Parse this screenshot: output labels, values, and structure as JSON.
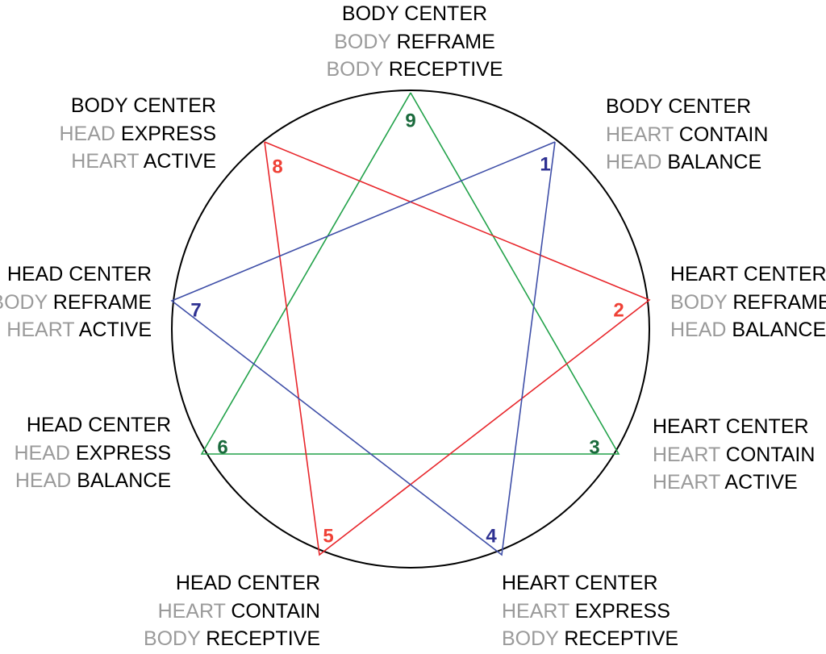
{
  "colors": {
    "circle": "#000000",
    "green": "#22a24a",
    "red": "#e8262b",
    "blue": "#3f4fa8",
    "green_label": "#1a6a3c",
    "red_label": "#ef4136",
    "blue_label": "#2e3192",
    "gray_text": "#9a9a9a"
  },
  "lines": [
    {
      "color": "green",
      "path": [
        9,
        3,
        6,
        9
      ]
    },
    {
      "color": "red",
      "path": [
        8,
        2,
        5,
        8
      ]
    },
    {
      "color": "blue",
      "path": [
        1,
        4,
        7,
        1
      ]
    }
  ],
  "nodes": [
    {
      "number": "9",
      "color": "green",
      "title": "BODY CENTER",
      "lines": [
        {
          "gray": "BODY",
          "black": "REFRAME"
        },
        {
          "gray": "BODY",
          "black": "RECEPTIVE"
        }
      ]
    },
    {
      "number": "1",
      "color": "blue",
      "title": "BODY CENTER",
      "lines": [
        {
          "gray": "HEART",
          "black": "CONTAIN"
        },
        {
          "gray": "HEAD",
          "black": "BALANCE"
        }
      ]
    },
    {
      "number": "2",
      "color": "red",
      "title": "HEART CENTER",
      "lines": [
        {
          "gray": "BODY",
          "black": "REFRAME"
        },
        {
          "gray": "HEAD",
          "black": "BALANCE"
        }
      ]
    },
    {
      "number": "3",
      "color": "green",
      "title": "HEART CENTER",
      "lines": [
        {
          "gray": "HEART",
          "black": "CONTAIN"
        },
        {
          "gray": "HEART",
          "black": "ACTIVE"
        }
      ]
    },
    {
      "number": "4",
      "color": "blue",
      "title": "HEART CENTER",
      "lines": [
        {
          "gray": "HEART",
          "black": "EXPRESS"
        },
        {
          "gray": "BODY",
          "black": "RECEPTIVE"
        }
      ]
    },
    {
      "number": "5",
      "color": "red",
      "title": "HEAD CENTER",
      "lines": [
        {
          "gray": "HEART",
          "black": "CONTAIN"
        },
        {
          "gray": "BODY",
          "black": "RECEPTIVE"
        }
      ]
    },
    {
      "number": "6",
      "color": "green",
      "title": "HEAD CENTER",
      "lines": [
        {
          "gray": "HEAD",
          "black": "EXPRESS"
        },
        {
          "gray": "HEAD",
          "black": "BALANCE"
        }
      ]
    },
    {
      "number": "7",
      "color": "blue",
      "title": "HEAD CENTER",
      "lines": [
        {
          "gray": "BODY",
          "black": "REFRAME"
        },
        {
          "gray": "HEART",
          "black": "ACTIVE"
        }
      ]
    },
    {
      "number": "8",
      "color": "red",
      "title": "BODY CENTER",
      "lines": [
        {
          "gray": "HEAD",
          "black": "EXPRESS"
        },
        {
          "gray": "HEART",
          "black": "ACTIVE"
        }
      ]
    }
  ]
}
